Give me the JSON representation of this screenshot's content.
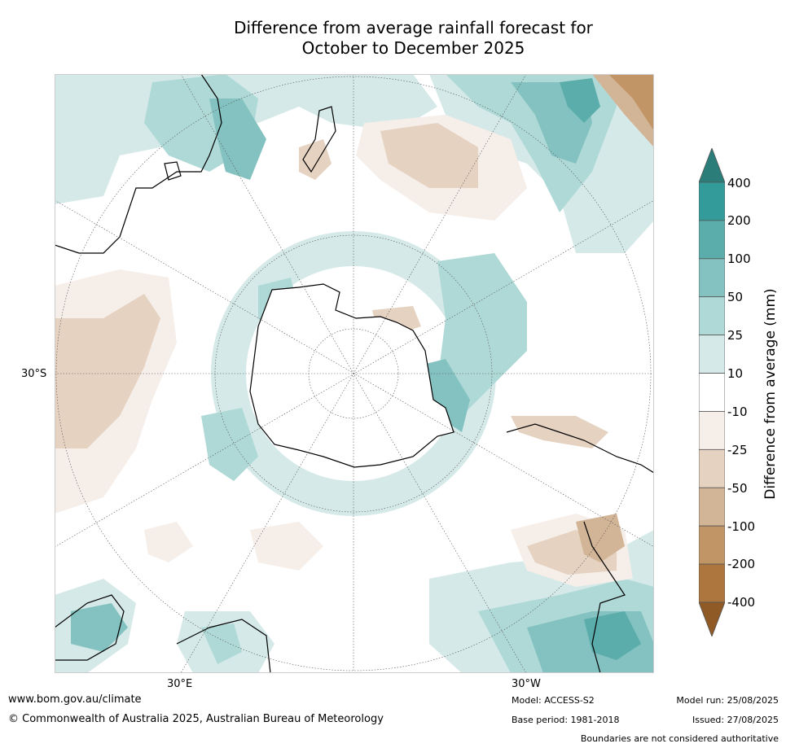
{
  "title": {
    "line1": "Difference from average rainfall forecast for",
    "line2": "October to December 2025"
  },
  "map": {
    "projection": "south-polar-stereographic",
    "region": "Southern Hemisphere",
    "lat_labels": [
      "30°S"
    ],
    "lon_labels": [
      "30°E",
      "30°W"
    ]
  },
  "legend": {
    "title": "Difference from average (mm)",
    "ticks": [
      "400",
      "200",
      "100",
      "50",
      "25",
      "10",
      "-10",
      "-25",
      "-50",
      "-100",
      "-200",
      "-400"
    ],
    "bins": [
      {
        "range": ">400",
        "color": "#2a7d79"
      },
      {
        "range": "200 to 400",
        "color": "#339c9a"
      },
      {
        "range": "100 to 200",
        "color": "#5aadab"
      },
      {
        "range": "50 to 100",
        "color": "#83c2c0"
      },
      {
        "range": "25 to 50",
        "color": "#afd9d7"
      },
      {
        "range": "10 to 25",
        "color": "#d5e9e8"
      },
      {
        "range": "-10 to 10",
        "color": "#ffffff"
      },
      {
        "range": "-25 to -10",
        "color": "#f5eee9"
      },
      {
        "range": "-50 to -25",
        "color": "#e5d2c1"
      },
      {
        "range": "-100 to -50",
        "color": "#d2b496"
      },
      {
        "range": "-200 to -100",
        "color": "#c19565"
      },
      {
        "range": "-400 to -200",
        "color": "#ad763e"
      },
      {
        "range": "<-400",
        "color": "#8f5a25"
      }
    ]
  },
  "footer": {
    "website": "www.bom.gov.au/climate",
    "copyright": "© Commonwealth of Australia 2025, Australian Bureau of Meteorology",
    "model": "Model: ACCESS-S2",
    "base_period": "Base period: 1981-2018",
    "model_run": "Model run: 25/08/2025",
    "issued": "Issued: 27/08/2025",
    "disclaimer": "Boundaries are not considered authoritative"
  }
}
